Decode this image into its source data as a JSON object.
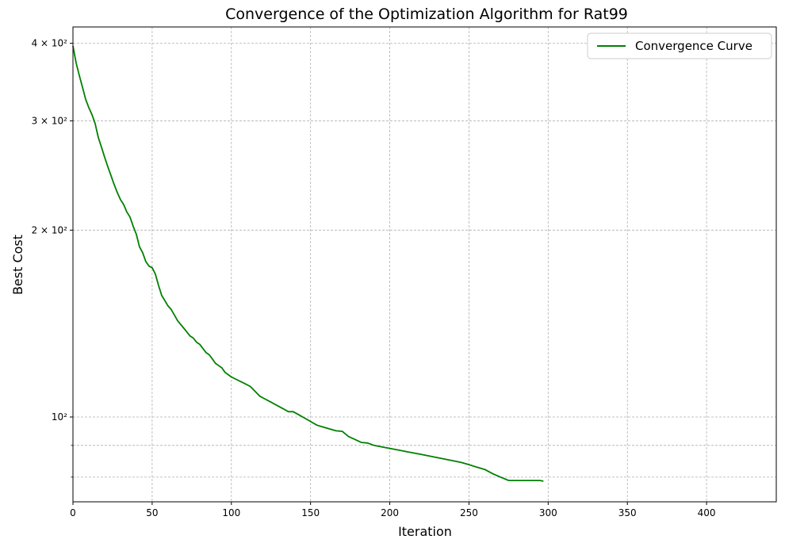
{
  "chart_data": {
    "type": "line",
    "title": "Convergence of the Optimization Algorithm for Rat99",
    "xlabel": "Iteration",
    "ylabel": "Best Cost",
    "yscale": "log",
    "xlim": [
      0,
      444
    ],
    "ylim": [
      73,
      425
    ],
    "grid": true,
    "legend_position": "top-right",
    "x_ticks": [
      0,
      50,
      100,
      150,
      200,
      250,
      300,
      350,
      400
    ],
    "y_ticks": [
      {
        "value": 400,
        "label": "4 × 10²"
      },
      {
        "value": 300,
        "label": "3 × 10²"
      },
      {
        "value": 200,
        "label": "2 × 10²"
      },
      {
        "value": 100,
        "label": "10²"
      }
    ],
    "y_minor_ticks": [
      90,
      80
    ],
    "series": [
      {
        "name": "Convergence Curve",
        "color": "#008000",
        "x": [
          0,
          2,
          4,
          6,
          8,
          10,
          12,
          14,
          16,
          18,
          20,
          22,
          24,
          26,
          28,
          30,
          32,
          34,
          36,
          38,
          40,
          42,
          44,
          46,
          48,
          50,
          52,
          54,
          56,
          58,
          60,
          62,
          64,
          66,
          68,
          70,
          72,
          74,
          76,
          78,
          80,
          82,
          84,
          86,
          88,
          90,
          92,
          94,
          96,
          98,
          100,
          103,
          106,
          109,
          112,
          115,
          118,
          121,
          124,
          127,
          130,
          133,
          136,
          139,
          142,
          145,
          148,
          151,
          154,
          157,
          160,
          163,
          166,
          170,
          174,
          178,
          182,
          186,
          190,
          195,
          200,
          205,
          210,
          215,
          220,
          225,
          230,
          235,
          240,
          245,
          250,
          255,
          260,
          265,
          270,
          275,
          280,
          285,
          290,
          295,
          297
        ],
        "y": [
          396,
          372,
          355,
          340,
          325,
          315,
          307,
          297,
          282,
          272,
          262,
          253,
          245,
          237,
          230,
          224,
          220,
          214,
          210,
          203,
          197,
          188,
          184,
          178,
          175,
          174,
          170,
          163,
          157,
          154,
          151,
          149,
          146,
          143,
          141,
          139,
          137,
          135,
          134,
          132,
          131,
          129,
          127,
          126,
          124,
          122,
          121,
          120,
          118,
          117,
          116,
          115,
          114,
          113,
          112,
          110,
          108,
          107,
          106,
          105,
          104,
          103,
          102,
          102,
          101,
          100,
          99,
          98,
          97,
          96.5,
          96,
          95.5,
          95,
          94.8,
          93,
          92,
          91,
          90.8,
          90,
          89.5,
          89,
          88.5,
          88,
          87.5,
          87,
          86.5,
          86,
          85.5,
          85,
          84.5,
          83.8,
          83,
          82.3,
          81,
          80,
          79,
          79,
          79,
          79,
          79,
          78.8
        ]
      }
    ]
  }
}
